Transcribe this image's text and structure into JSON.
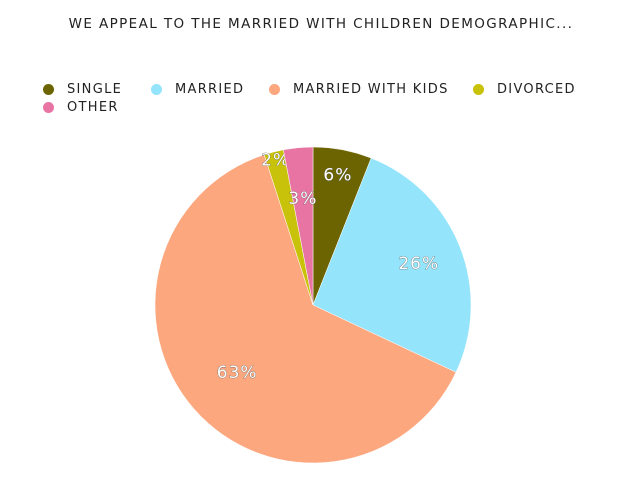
{
  "chart_data": {
    "type": "pie",
    "title": "WE APPEAL TO THE MARRIED WITH CHILDREN DEMOGRAPHIC...",
    "legend_position": "top-left",
    "slices": [
      {
        "name": "SINGLE",
        "value": 6,
        "label": "6%",
        "color": "#6b6400"
      },
      {
        "name": "MARRIED",
        "value": 26,
        "label": "26%",
        "color": "#94e4fc"
      },
      {
        "name": "MARRIED WITH KIDS",
        "value": 63,
        "label": "63%",
        "color": "#fca77e"
      },
      {
        "name": "DIVORCED",
        "value": 2,
        "label": "2%",
        "color": "#c9c20a"
      },
      {
        "name": "OTHER",
        "value": 3,
        "label": "3%",
        "color": "#e874a4"
      }
    ]
  }
}
